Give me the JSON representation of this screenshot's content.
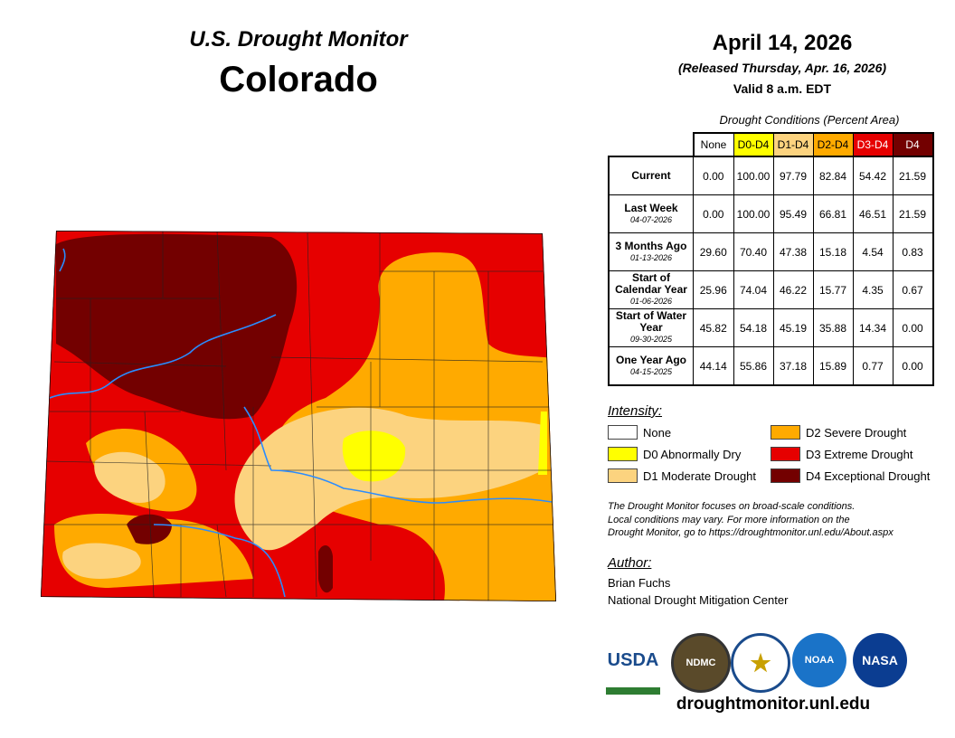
{
  "header": {
    "title": "U.S. Drought Monitor",
    "state": "Colorado",
    "date": "April 14, 2026",
    "released": "(Released Thursday, Apr. 16, 2026)",
    "valid": "Valid 8 a.m. EDT"
  },
  "table": {
    "caption": "Drought Conditions (Percent Area)",
    "columns": [
      "None",
      "D0-D4",
      "D1-D4",
      "D2-D4",
      "D3-D4",
      "D4"
    ],
    "rows": [
      {
        "label": "Current",
        "date": "",
        "values": [
          "0.00",
          "100.00",
          "97.79",
          "82.84",
          "54.42",
          "21.59"
        ]
      },
      {
        "label": "Last Week",
        "date": "04-07-2026",
        "values": [
          "0.00",
          "100.00",
          "95.49",
          "66.81",
          "46.51",
          "21.59"
        ]
      },
      {
        "label": "3 Months Ago",
        "date": "01-13-2026",
        "values": [
          "29.60",
          "70.40",
          "47.38",
          "15.18",
          "4.54",
          "0.83"
        ]
      },
      {
        "label": "Start of Calendar Year",
        "date": "01-06-2026",
        "values": [
          "25.96",
          "74.04",
          "46.22",
          "15.77",
          "4.35",
          "0.67"
        ]
      },
      {
        "label": "Start of Water Year",
        "date": "09-30-2025",
        "values": [
          "45.82",
          "54.18",
          "45.19",
          "35.88",
          "14.34",
          "0.00"
        ]
      },
      {
        "label": "One Year Ago",
        "date": "04-15-2025",
        "values": [
          "44.14",
          "55.86",
          "37.18",
          "15.89",
          "0.77",
          "0.00"
        ]
      }
    ]
  },
  "legend": {
    "title": "Intensity:",
    "items": [
      {
        "label": "None",
        "color": "#ffffff"
      },
      {
        "label": "D0 Abnormally Dry",
        "color": "#ffff00"
      },
      {
        "label": "D1 Moderate Drought",
        "color": "#fcd37f"
      },
      {
        "label": "D2 Severe Drought",
        "color": "#ffaa00"
      },
      {
        "label": "D3 Extreme Drought",
        "color": "#e60000"
      },
      {
        "label": "D4 Exceptional Drought",
        "color": "#730000"
      }
    ]
  },
  "note": [
    "The Drought Monitor focuses on broad-scale conditions.",
    "Local conditions may vary. For more information on the",
    "Drought Monitor, go to https://droughtmonitor.unl.edu/About.aspx"
  ],
  "author": {
    "title": "Author:",
    "name": "Brian Fuchs",
    "org": "National Drought Mitigation Center"
  },
  "logos": [
    "USDA",
    "NDMC",
    "NOAA",
    "NASA"
  ],
  "url": "droughtmonitor.unl.edu"
}
